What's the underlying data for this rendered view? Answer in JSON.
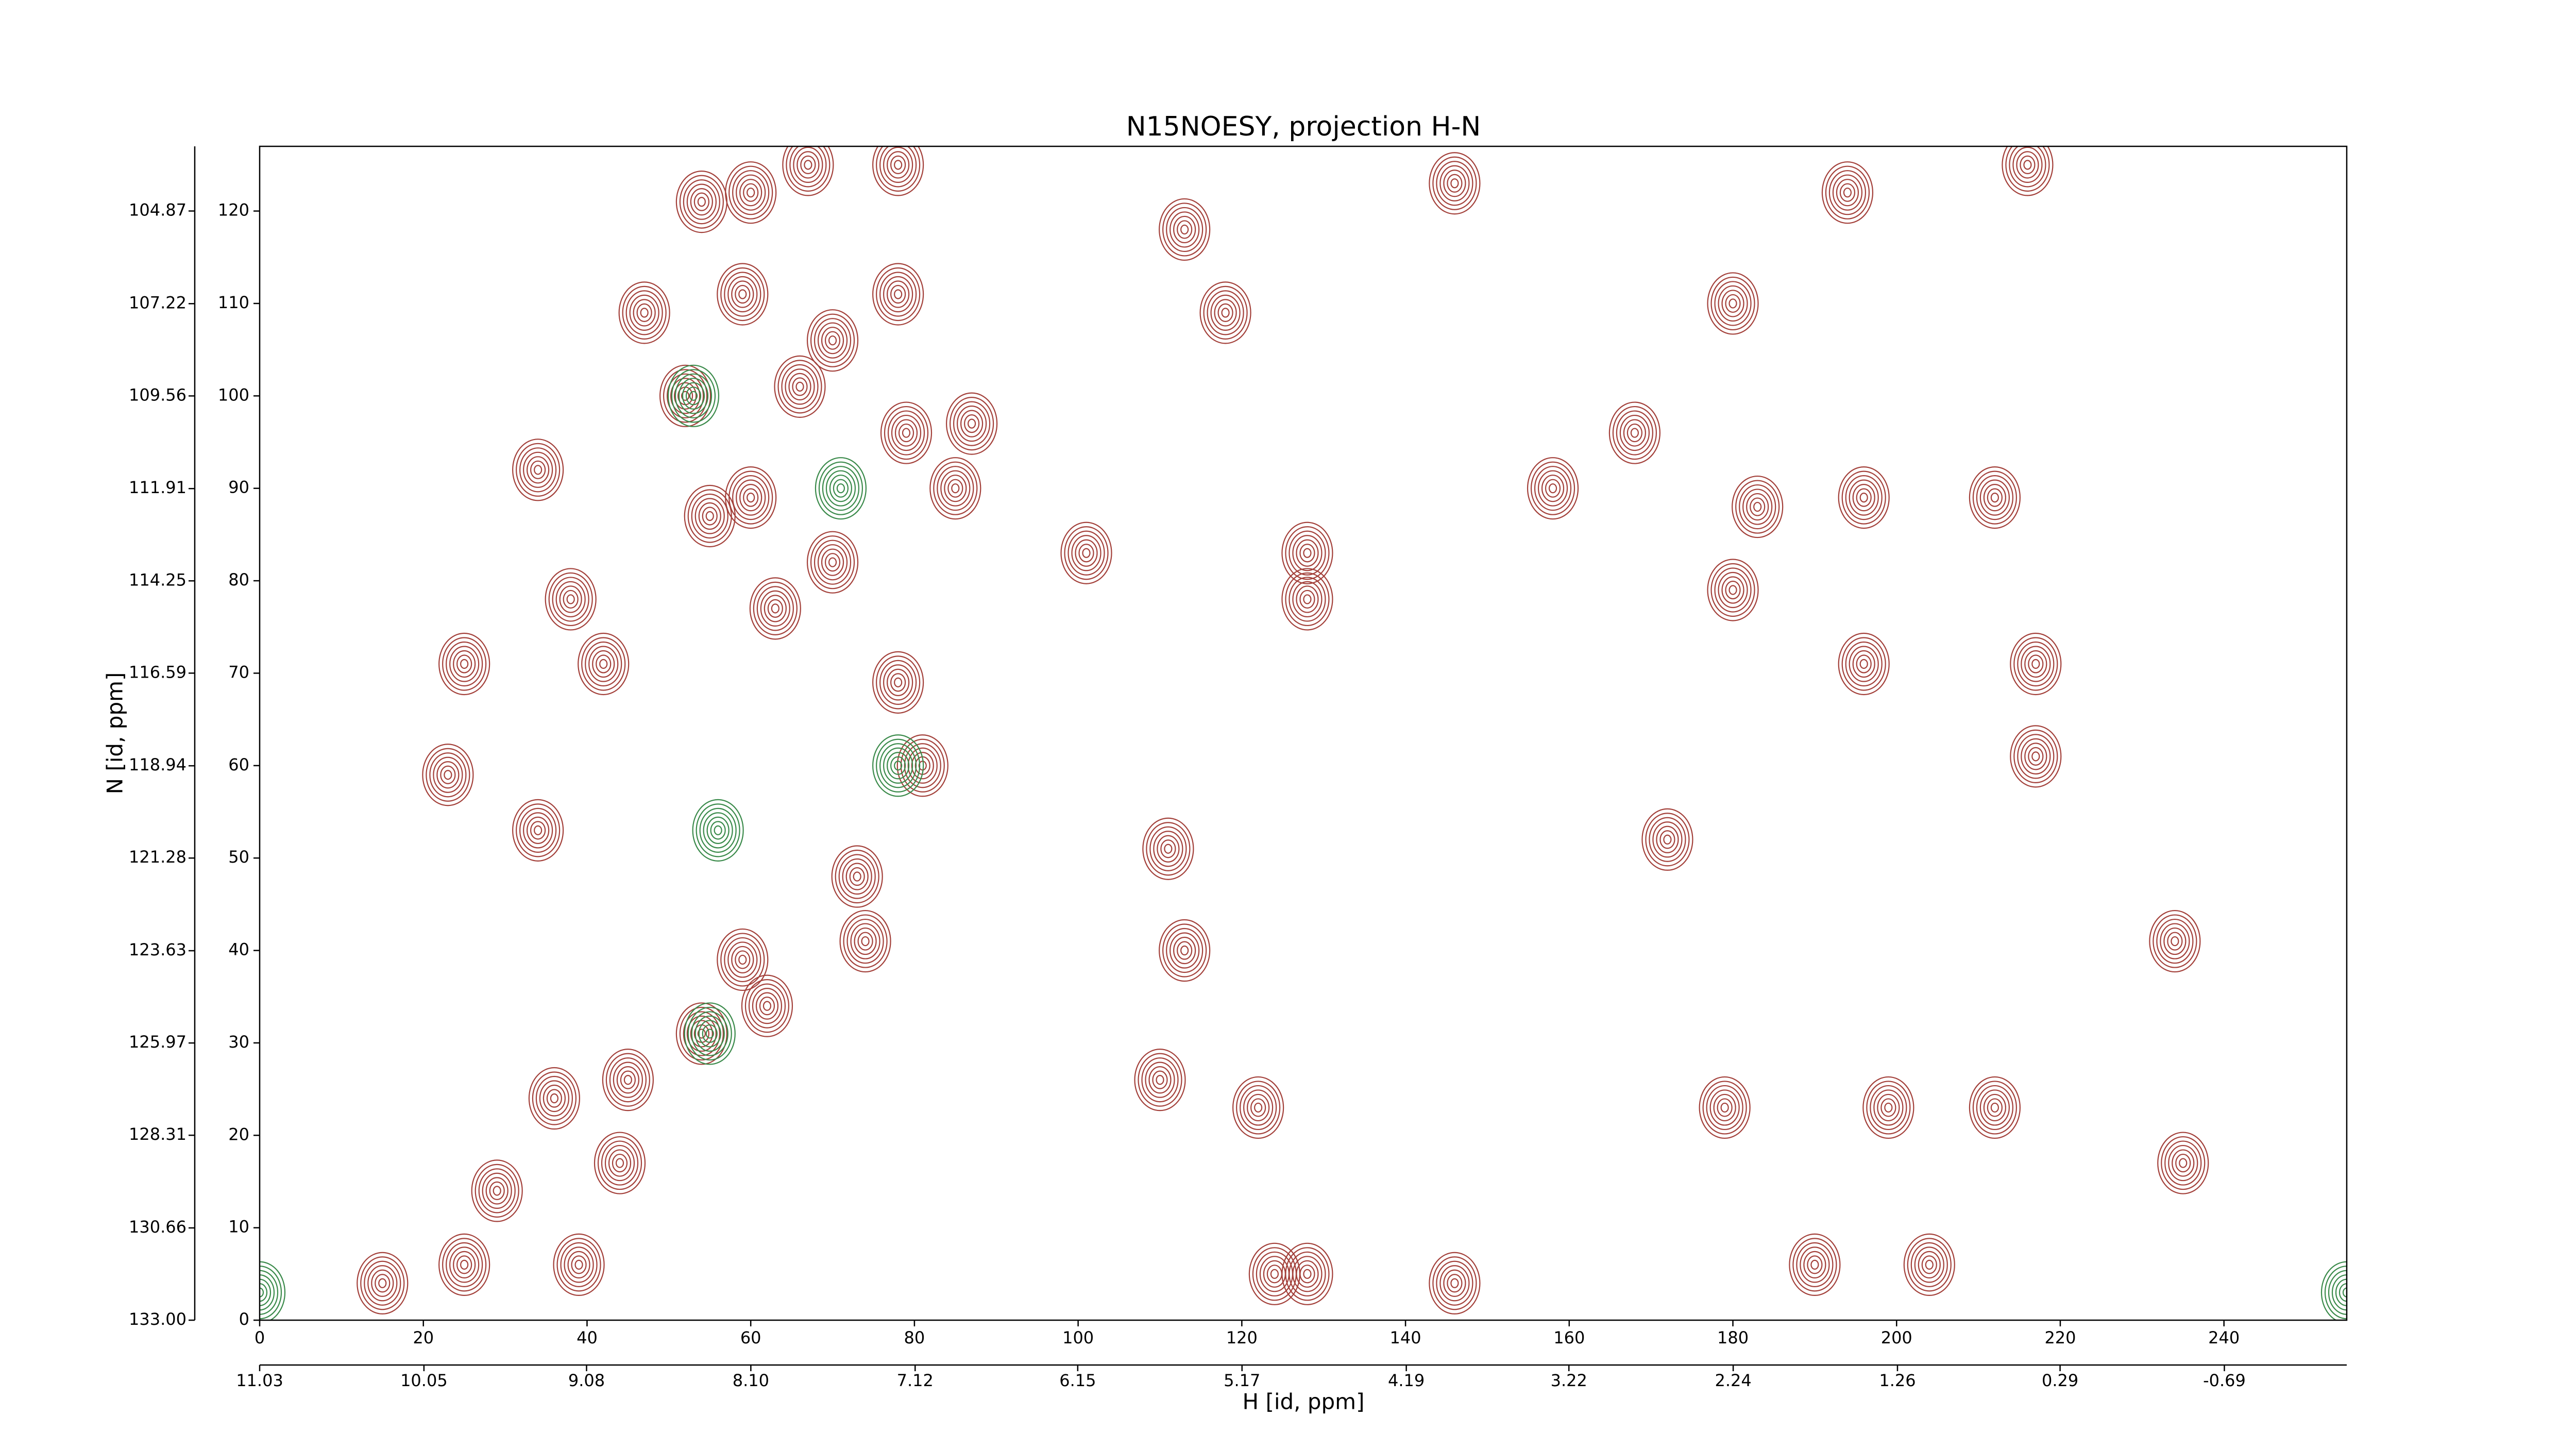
{
  "chart_data": {
    "type": "contour",
    "title": "N15NOESY, projection H-N",
    "x_label": "H [id, ppm]",
    "y_label": "N [id, ppm]",
    "xlim": [
      0,
      255
    ],
    "xticks": [
      0,
      20,
      40,
      60,
      80,
      100,
      120,
      140,
      160,
      180,
      200,
      220,
      240
    ],
    "ylim": [
      0,
      127
    ],
    "yticks": [
      0,
      10,
      20,
      30,
      40,
      50,
      60,
      70,
      80,
      90,
      100,
      110,
      120
    ],
    "x2lim": [
      11.03,
      -1.42
    ],
    "x2ticks": [
      11.03,
      10.05,
      9.08,
      {
        "value": 8.1,
        "label": "8.10"
      },
      7.12,
      6.15,
      5.17,
      4.19,
      3.22,
      2.24,
      1.26,
      0.29,
      -0.69
    ],
    "y2lim": [
      133,
      103.23
    ],
    "y2ticks": [
      {
        "value": 133,
        "label": "133.00"
      },
      130.66,
      128.31,
      125.97,
      123.63,
      121.28,
      118.94,
      116.59,
      114.25,
      111.91,
      109.56,
      107.22,
      104.87
    ],
    "series": [
      {
        "color": "#a3403a",
        "x": [
          15,
          25,
          39,
          29,
          44,
          36,
          45,
          54,
          62,
          34,
          23,
          25,
          42,
          38,
          34,
          52,
          47,
          59,
          60,
          54,
          67,
          78,
          70,
          78,
          66,
          79,
          87,
          85,
          55,
          60,
          63,
          70,
          78,
          81,
          73,
          59,
          74,
          101,
          113,
          118,
          111,
          113,
          110,
          122,
          128,
          128,
          128,
          124,
          146,
          146,
          158,
          168,
          180,
          180,
          183,
          196,
          194,
          196,
          212,
          217,
          217,
          216,
          199,
          190,
          204,
          235,
          234,
          172,
          179,
          212
        ],
        "y": [
          4,
          6,
          6,
          14,
          17,
          24,
          26,
          31,
          34,
          53,
          59,
          71,
          71,
          78,
          92,
          100,
          109,
          111,
          122,
          121,
          125,
          125,
          106,
          111,
          101,
          96,
          97,
          90,
          87,
          89,
          77,
          82,
          69,
          60,
          48,
          39,
          41,
          83,
          118,
          109,
          51,
          40,
          26,
          23,
          78,
          83,
          5,
          5,
          123,
          4,
          90,
          96,
          110,
          79,
          88,
          89,
          122,
          71,
          89,
          71,
          61,
          125,
          23,
          6,
          6,
          17,
          41,
          52,
          23,
          23
        ]
      },
      {
        "color": "#3a8a4a",
        "x": [
          53,
          71,
          78,
          56,
          55,
          255,
          0
        ],
        "y": [
          100,
          90,
          60,
          53,
          31,
          3,
          3
        ]
      }
    ]
  }
}
